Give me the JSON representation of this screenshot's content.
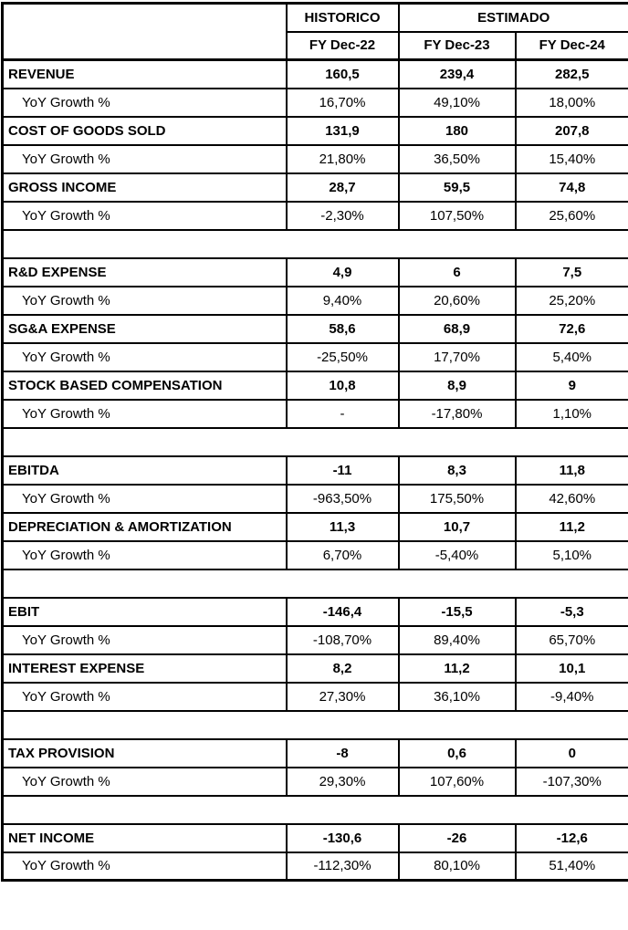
{
  "chart_data": {
    "type": "table",
    "column_groups": [
      "HISTORICO",
      "ESTIMADO"
    ],
    "columns": [
      "FY Dec-22",
      "FY Dec-23",
      "FY Dec-24"
    ],
    "yoy_row_label": "YoY Growth %",
    "rows": [
      {
        "kind": "metric",
        "label": "REVENUE",
        "values": [
          "160,5",
          "239,4",
          "282,5"
        ]
      },
      {
        "kind": "yoy",
        "values": [
          "16,70%",
          "49,10%",
          "18,00%"
        ]
      },
      {
        "kind": "metric",
        "label": "COST OF GOODS SOLD",
        "values": [
          "131,9",
          "180",
          "207,8"
        ]
      },
      {
        "kind": "yoy",
        "values": [
          "21,80%",
          "36,50%",
          "15,40%"
        ]
      },
      {
        "kind": "metric",
        "label": "GROSS INCOME",
        "values": [
          "28,7",
          "59,5",
          "74,8"
        ]
      },
      {
        "kind": "yoy",
        "values": [
          "-2,30%",
          "107,50%",
          "25,60%"
        ]
      },
      {
        "kind": "spacer"
      },
      {
        "kind": "metric",
        "label": "R&D EXPENSE",
        "values": [
          "4,9",
          "6",
          "7,5"
        ]
      },
      {
        "kind": "yoy",
        "values": [
          "9,40%",
          "20,60%",
          "25,20%"
        ]
      },
      {
        "kind": "metric",
        "label": "SG&A EXPENSE",
        "values": [
          "58,6",
          "68,9",
          "72,6"
        ]
      },
      {
        "kind": "yoy",
        "values": [
          "-25,50%",
          "17,70%",
          "5,40%"
        ]
      },
      {
        "kind": "metric",
        "label": "STOCK BASED COMPENSATION",
        "values": [
          "10,8",
          "8,9",
          "9"
        ]
      },
      {
        "kind": "yoy",
        "values": [
          "-",
          "-17,80%",
          "1,10%"
        ]
      },
      {
        "kind": "spacer"
      },
      {
        "kind": "metric",
        "label": "EBITDA",
        "values": [
          "-11",
          "8,3",
          "11,8"
        ]
      },
      {
        "kind": "yoy",
        "values": [
          "-963,50%",
          "175,50%",
          "42,60%"
        ]
      },
      {
        "kind": "metric",
        "label": "DEPRECIATION & AMORTIZATION",
        "values": [
          "11,3",
          "10,7",
          "11,2"
        ]
      },
      {
        "kind": "yoy",
        "values": [
          "6,70%",
          "-5,40%",
          "5,10%"
        ]
      },
      {
        "kind": "spacer"
      },
      {
        "kind": "metric",
        "label": "EBIT",
        "values": [
          "-146,4",
          "-15,5",
          "-5,3"
        ]
      },
      {
        "kind": "yoy",
        "values": [
          "-108,70%",
          "89,40%",
          "65,70%"
        ]
      },
      {
        "kind": "metric",
        "label": "INTEREST EXPENSE",
        "values": [
          "8,2",
          "11,2",
          "10,1"
        ]
      },
      {
        "kind": "yoy",
        "values": [
          "27,30%",
          "36,10%",
          "-9,40%"
        ]
      },
      {
        "kind": "spacer"
      },
      {
        "kind": "metric",
        "label": "TAX PROVISION",
        "values": [
          "-8",
          "0,6",
          "0"
        ]
      },
      {
        "kind": "yoy",
        "values": [
          "29,30%",
          "107,60%",
          "-107,30%"
        ]
      },
      {
        "kind": "spacer"
      },
      {
        "kind": "metric",
        "label": "NET INCOME",
        "values": [
          "-130,6",
          "-26",
          "-12,6"
        ]
      },
      {
        "kind": "yoy",
        "values": [
          "-112,30%",
          "80,10%",
          "51,40%"
        ]
      }
    ],
    "colors": {
      "border": "#000000",
      "text": "#000000",
      "background": "#ffffff"
    }
  }
}
